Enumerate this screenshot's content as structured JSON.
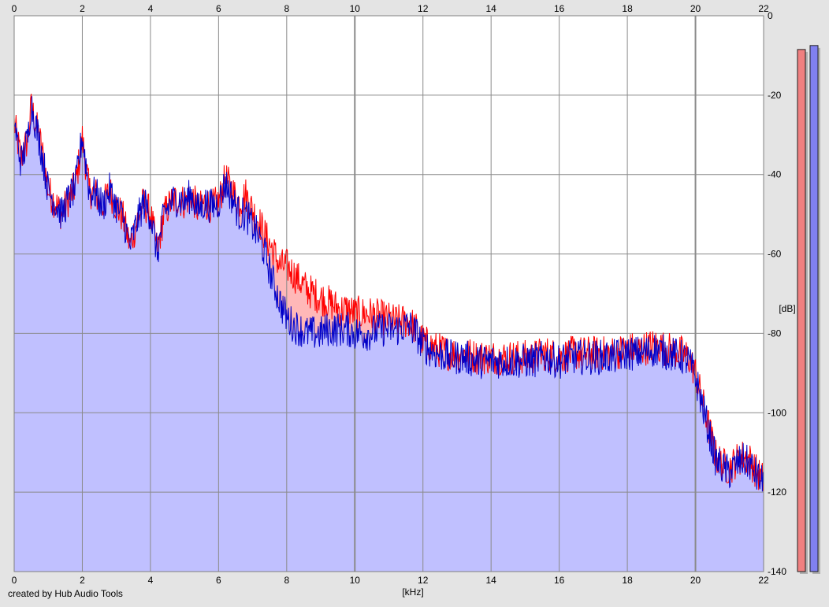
{
  "footer": {
    "credit": "created by Hub Audio Tools"
  },
  "chart_data": {
    "type": "area",
    "title": "",
    "xlabel": "[kHz]",
    "ylabel": "[dB]",
    "xlim": [
      0,
      22
    ],
    "ylim": [
      -140,
      0
    ],
    "x_ticks": [
      0,
      2,
      4,
      6,
      8,
      10,
      12,
      14,
      16,
      18,
      20,
      22
    ],
    "y_ticks": [
      0,
      -20,
      -40,
      -60,
      -80,
      -100,
      -120,
      -140
    ],
    "grid": true,
    "series": [
      {
        "color": "#ff0000",
        "fill": "#ffb8b8",
        "points": [
          [
            0,
            -27
          ],
          [
            0.2,
            -36
          ],
          [
            0.4,
            -31
          ],
          [
            0.5,
            -23
          ],
          [
            0.6,
            -26
          ],
          [
            0.8,
            -33
          ],
          [
            1.0,
            -44
          ],
          [
            1.2,
            -47
          ],
          [
            1.4,
            -50
          ],
          [
            1.6,
            -46
          ],
          [
            1.8,
            -43
          ],
          [
            2.0,
            -31
          ],
          [
            2.2,
            -44
          ],
          [
            2.4,
            -45
          ],
          [
            2.6,
            -48
          ],
          [
            2.8,
            -44
          ],
          [
            3.0,
            -48
          ],
          [
            3.2,
            -51
          ],
          [
            3.4,
            -58
          ],
          [
            3.6,
            -52
          ],
          [
            3.8,
            -47
          ],
          [
            4.0,
            -50
          ],
          [
            4.2,
            -59
          ],
          [
            4.4,
            -50
          ],
          [
            4.6,
            -47
          ],
          [
            4.8,
            -46
          ],
          [
            5.0,
            -47
          ],
          [
            5.2,
            -45
          ],
          [
            5.4,
            -49
          ],
          [
            5.6,
            -47
          ],
          [
            5.8,
            -48
          ],
          [
            6.0,
            -47
          ],
          [
            6.2,
            -41
          ],
          [
            6.4,
            -44
          ],
          [
            6.6,
            -47
          ],
          [
            6.8,
            -45
          ],
          [
            7.0,
            -49
          ],
          [
            7.2,
            -52
          ],
          [
            7.4,
            -56
          ],
          [
            7.6,
            -59
          ],
          [
            7.8,
            -63
          ],
          [
            8.0,
            -63
          ],
          [
            8.2,
            -65
          ],
          [
            8.4,
            -67
          ],
          [
            8.6,
            -69
          ],
          [
            8.8,
            -70
          ],
          [
            9.0,
            -71
          ],
          [
            9.2,
            -72
          ],
          [
            9.4,
            -73
          ],
          [
            9.6,
            -74
          ],
          [
            9.8,
            -74
          ],
          [
            10.0,
            -75
          ],
          [
            10.4,
            -75
          ],
          [
            10.8,
            -76
          ],
          [
            11.2,
            -77
          ],
          [
            11.6,
            -77
          ],
          [
            11.8,
            -79
          ],
          [
            12.0,
            -82
          ],
          [
            12.4,
            -84
          ],
          [
            12.8,
            -85
          ],
          [
            13.2,
            -85
          ],
          [
            13.6,
            -86
          ],
          [
            14.0,
            -86
          ],
          [
            14.4,
            -86
          ],
          [
            14.8,
            -86
          ],
          [
            15.2,
            -86
          ],
          [
            15.6,
            -85
          ],
          [
            16.0,
            -86
          ],
          [
            16.4,
            -85
          ],
          [
            16.8,
            -85
          ],
          [
            17.2,
            -85
          ],
          [
            17.6,
            -85
          ],
          [
            18.0,
            -84
          ],
          [
            18.4,
            -84
          ],
          [
            18.8,
            -83
          ],
          [
            19.2,
            -84
          ],
          [
            19.6,
            -85
          ],
          [
            19.8,
            -86
          ],
          [
            20.0,
            -90
          ],
          [
            20.2,
            -97
          ],
          [
            20.4,
            -104
          ],
          [
            20.6,
            -111
          ],
          [
            20.8,
            -113
          ],
          [
            21.0,
            -114
          ],
          [
            21.2,
            -112
          ],
          [
            21.4,
            -111
          ],
          [
            21.6,
            -112
          ],
          [
            21.8,
            -115
          ],
          [
            22.0,
            -117
          ]
        ]
      },
      {
        "color": "#0000c8",
        "fill": "#c0c0ff",
        "points": [
          [
            0,
            -27
          ],
          [
            0.2,
            -37
          ],
          [
            0.4,
            -31
          ],
          [
            0.5,
            -22
          ],
          [
            0.6,
            -26
          ],
          [
            0.8,
            -34
          ],
          [
            1.0,
            -44
          ],
          [
            1.2,
            -47
          ],
          [
            1.4,
            -50
          ],
          [
            1.6,
            -46
          ],
          [
            1.8,
            -43
          ],
          [
            2.0,
            -30
          ],
          [
            2.2,
            -44
          ],
          [
            2.4,
            -45
          ],
          [
            2.6,
            -48
          ],
          [
            2.8,
            -44
          ],
          [
            3.0,
            -48
          ],
          [
            3.2,
            -51
          ],
          [
            3.4,
            -58
          ],
          [
            3.6,
            -52
          ],
          [
            3.8,
            -47
          ],
          [
            4.0,
            -50
          ],
          [
            4.2,
            -60
          ],
          [
            4.4,
            -50
          ],
          [
            4.6,
            -47
          ],
          [
            4.8,
            -46
          ],
          [
            5.0,
            -47
          ],
          [
            5.2,
            -45
          ],
          [
            5.4,
            -49
          ],
          [
            5.6,
            -47
          ],
          [
            5.8,
            -48
          ],
          [
            6.0,
            -47
          ],
          [
            6.2,
            -42
          ],
          [
            6.4,
            -46
          ],
          [
            6.6,
            -50
          ],
          [
            6.8,
            -50
          ],
          [
            7.0,
            -53
          ],
          [
            7.2,
            -56
          ],
          [
            7.4,
            -61
          ],
          [
            7.6,
            -67
          ],
          [
            7.8,
            -72
          ],
          [
            8.0,
            -76
          ],
          [
            8.2,
            -78
          ],
          [
            8.4,
            -79
          ],
          [
            8.6,
            -80
          ],
          [
            8.8,
            -80
          ],
          [
            9.0,
            -80
          ],
          [
            9.2,
            -79
          ],
          [
            9.4,
            -79
          ],
          [
            9.6,
            -79
          ],
          [
            9.8,
            -79
          ],
          [
            10.0,
            -80
          ],
          [
            10.4,
            -80
          ],
          [
            10.8,
            -79
          ],
          [
            11.2,
            -79
          ],
          [
            11.6,
            -78
          ],
          [
            11.8,
            -80
          ],
          [
            12.0,
            -83
          ],
          [
            12.4,
            -85
          ],
          [
            12.8,
            -86
          ],
          [
            13.2,
            -86
          ],
          [
            13.6,
            -87
          ],
          [
            14.0,
            -87
          ],
          [
            14.4,
            -87
          ],
          [
            14.8,
            -87
          ],
          [
            15.2,
            -87
          ],
          [
            15.6,
            -86
          ],
          [
            16.0,
            -87
          ],
          [
            16.4,
            -86
          ],
          [
            16.8,
            -86
          ],
          [
            17.2,
            -86
          ],
          [
            17.6,
            -86
          ],
          [
            18.0,
            -85
          ],
          [
            18.4,
            -85
          ],
          [
            18.8,
            -84
          ],
          [
            19.2,
            -85
          ],
          [
            19.6,
            -86
          ],
          [
            19.8,
            -87
          ],
          [
            20.0,
            -91
          ],
          [
            20.2,
            -98
          ],
          [
            20.4,
            -105
          ],
          [
            20.6,
            -112
          ],
          [
            20.8,
            -114
          ],
          [
            21.0,
            -115
          ],
          [
            21.2,
            -113
          ],
          [
            21.4,
            -112
          ],
          [
            21.6,
            -113
          ],
          [
            21.8,
            -116
          ],
          [
            22.0,
            -118
          ]
        ]
      }
    ],
    "level_meters": [
      {
        "color": "#f08080",
        "value_db": -8.5
      },
      {
        "color": "#8080f0",
        "value_db": -7.5
      }
    ]
  }
}
